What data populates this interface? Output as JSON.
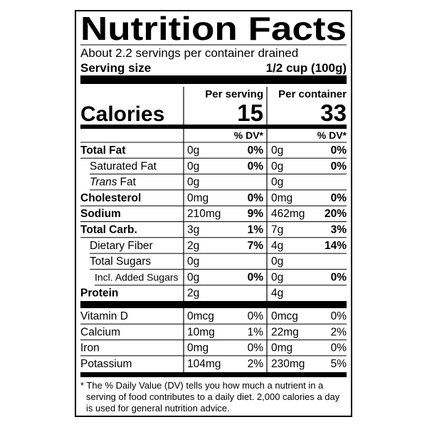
{
  "header": {
    "title": "Nutrition Facts",
    "servings": "About 2.2 servings per container drained",
    "serving_size_label": "Serving size",
    "serving_size": "1/2 cup (100g)"
  },
  "columns": [
    "Per serving",
    "Per container"
  ],
  "calories": {
    "label": "Calories",
    "values": [
      15,
      33
    ]
  },
  "dv_header": "% DV*",
  "nutrients": [
    {
      "name": "Total Fat",
      "bold": true,
      "indent": 0,
      "values": [
        [
          "0g",
          "0%"
        ],
        [
          "0g",
          "0%"
        ]
      ]
    },
    {
      "name": "Saturated Fat",
      "bold": false,
      "indent": 1,
      "values": [
        [
          "0g",
          "0%"
        ],
        [
          "0g",
          "0%"
        ]
      ]
    },
    {
      "name_italic": "Trans",
      "name": "Fat",
      "bold": false,
      "indent": 1,
      "values": [
        [
          "0g",
          null
        ],
        [
          "0g",
          null
        ]
      ]
    },
    {
      "name": "Cholesterol",
      "bold": true,
      "indent": 0,
      "values": [
        [
          "0mg",
          "0%"
        ],
        [
          "0mg",
          "0%"
        ]
      ]
    },
    {
      "name": "Sodium",
      "bold": true,
      "indent": 0,
      "values": [
        [
          "210mg",
          "9%"
        ],
        [
          "462mg",
          "20%"
        ]
      ]
    },
    {
      "name": "Total Carb.",
      "bold": true,
      "indent": 0,
      "values": [
        [
          "3g",
          "1%"
        ],
        [
          "7g",
          "3%"
        ]
      ]
    },
    {
      "name": "Dietary Fiber",
      "bold": false,
      "indent": 1,
      "values": [
        [
          "2g",
          "7%"
        ],
        [
          "4g",
          "14%"
        ]
      ]
    },
    {
      "name": "Total Sugars",
      "bold": false,
      "indent": 1,
      "values": [
        [
          "0g",
          null
        ],
        [
          "0g",
          null
        ]
      ]
    },
    {
      "name": "Incl. Added Sugars",
      "bold": false,
      "indent": 2,
      "values": [
        [
          "0g",
          "0%"
        ],
        [
          "0g",
          "0%"
        ]
      ]
    },
    {
      "name": "Protein",
      "bold": true,
      "indent": 0,
      "values": [
        [
          "2g",
          null
        ],
        [
          "4g",
          null
        ]
      ]
    }
  ],
  "vitamins": [
    {
      "name": "Vitamin D",
      "values": [
        [
          "0mcg",
          "0%"
        ],
        [
          "0mcg",
          "0%"
        ]
      ]
    },
    {
      "name": "Calcium",
      "values": [
        [
          "10mg",
          "1%"
        ],
        [
          "22mg",
          "2%"
        ]
      ]
    },
    {
      "name": "Iron",
      "values": [
        [
          "0mg",
          "0%"
        ],
        [
          "0mg",
          "0%"
        ]
      ]
    },
    {
      "name": "Potassium",
      "values": [
        [
          "104mg",
          "2%"
        ],
        [
          "230mg",
          "5%"
        ]
      ]
    }
  ],
  "footnote": [
    "* The % Daily Value (DV) tells you how much a nutrient in a",
    "serving of food contributes to a daily diet. 2,000 calories a day",
    "is used for general nutrition advice."
  ]
}
